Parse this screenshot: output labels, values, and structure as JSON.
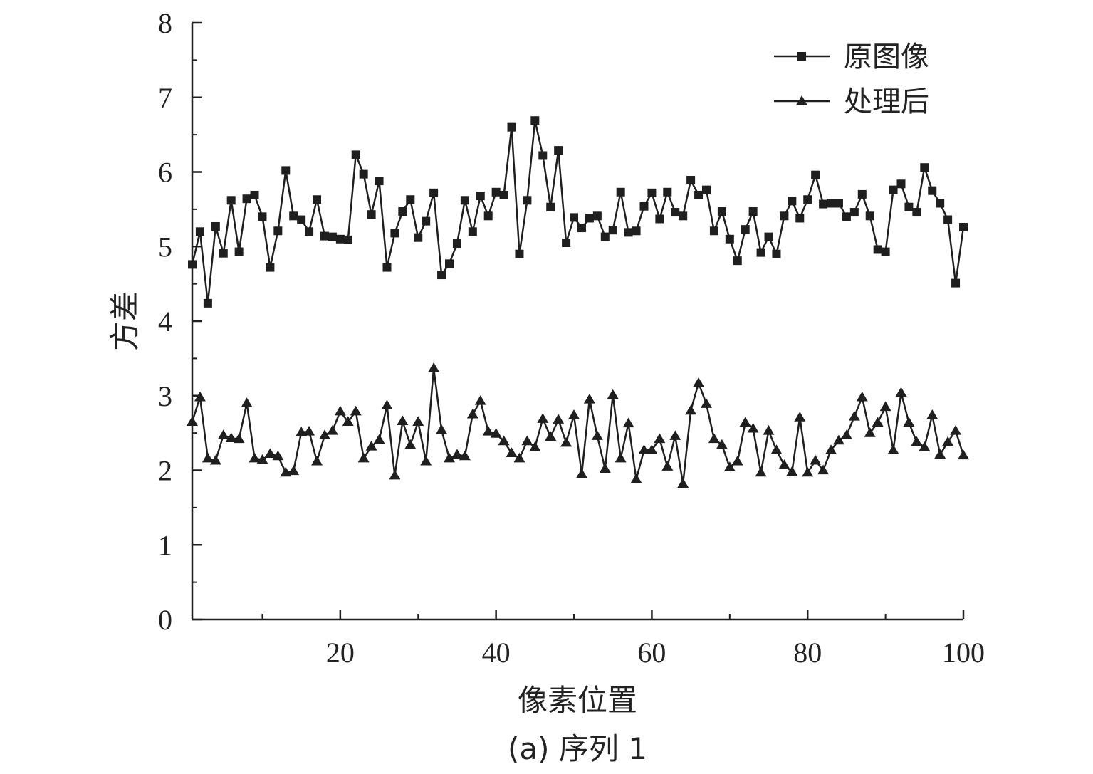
{
  "chart_data": {
    "type": "line",
    "caption": "(a) 序列 1",
    "xlabel": "像素位置",
    "ylabel": "方差",
    "xlim": [
      1,
      100
    ],
    "ylim": [
      0,
      8
    ],
    "x_ticks": [
      20,
      40,
      60,
      80,
      100
    ],
    "x_minor_ticks": [
      10,
      30,
      50,
      70,
      90
    ],
    "y_ticks": [
      0,
      1,
      2,
      3,
      4,
      5,
      6,
      7,
      8
    ],
    "legend_position": "top-right",
    "grid": false,
    "colors": {
      "line": "#1f1f1f"
    },
    "x": [
      1,
      2,
      3,
      4,
      5,
      6,
      7,
      8,
      9,
      10,
      11,
      12,
      13,
      14,
      15,
      16,
      17,
      18,
      19,
      20,
      21,
      22,
      23,
      24,
      25,
      26,
      27,
      28,
      29,
      30,
      31,
      32,
      33,
      34,
      35,
      36,
      37,
      38,
      39,
      40,
      41,
      42,
      43,
      44,
      45,
      46,
      47,
      48,
      49,
      50,
      51,
      52,
      53,
      54,
      55,
      56,
      57,
      58,
      59,
      60,
      61,
      62,
      63,
      64,
      65,
      66,
      67,
      68,
      69,
      70,
      71,
      72,
      73,
      74,
      75,
      76,
      77,
      78,
      79,
      80,
      81,
      82,
      83,
      84,
      85,
      86,
      87,
      88,
      89,
      90,
      91,
      92,
      93,
      94,
      95,
      96,
      97,
      98,
      99,
      100
    ],
    "series": [
      {
        "name": "原图像",
        "marker": "square",
        "values": [
          4.76,
          5.2,
          4.24,
          5.27,
          4.91,
          5.62,
          4.93,
          5.64,
          5.69,
          5.4,
          4.72,
          5.21,
          6.02,
          5.41,
          5.36,
          5.2,
          5.63,
          5.14,
          5.13,
          5.1,
          5.09,
          6.23,
          5.97,
          5.43,
          5.88,
          4.72,
          5.18,
          5.47,
          5.63,
          5.12,
          5.34,
          5.72,
          4.62,
          4.77,
          5.04,
          5.62,
          5.2,
          5.68,
          5.41,
          5.73,
          5.69,
          6.6,
          4.9,
          5.62,
          6.69,
          6.22,
          5.53,
          6.29,
          5.05,
          5.39,
          5.25,
          5.38,
          5.41,
          5.13,
          5.22,
          5.73,
          5.19,
          5.21,
          5.54,
          5.72,
          5.37,
          5.73,
          5.46,
          5.41,
          5.89,
          5.69,
          5.76,
          5.21,
          5.47,
          5.1,
          4.81,
          5.23,
          5.47,
          4.92,
          5.13,
          4.9,
          5.41,
          5.61,
          5.38,
          5.63,
          5.96,
          5.57,
          5.58,
          5.58,
          5.4,
          5.46,
          5.7,
          5.41,
          4.96,
          4.93,
          5.76,
          5.84,
          5.53,
          5.46,
          6.06,
          5.75,
          5.58,
          5.36,
          4.51,
          5.26
        ]
      },
      {
        "name": "处理后",
        "marker": "triangle",
        "values": [
          2.65,
          2.98,
          2.16,
          2.13,
          2.47,
          2.43,
          2.42,
          2.9,
          2.16,
          2.14,
          2.22,
          2.19,
          1.97,
          1.99,
          2.51,
          2.52,
          2.12,
          2.47,
          2.53,
          2.79,
          2.65,
          2.79,
          2.16,
          2.32,
          2.41,
          2.87,
          1.93,
          2.66,
          2.34,
          2.65,
          2.12,
          3.37,
          2.54,
          2.16,
          2.21,
          2.19,
          2.75,
          2.93,
          2.52,
          2.49,
          2.39,
          2.23,
          2.16,
          2.39,
          2.31,
          2.69,
          2.45,
          2.68,
          2.37,
          2.74,
          1.95,
          2.95,
          2.46,
          2.02,
          3.01,
          2.16,
          2.63,
          1.88,
          2.27,
          2.27,
          2.42,
          2.05,
          2.46,
          1.82,
          2.8,
          3.17,
          2.89,
          2.42,
          2.34,
          2.04,
          2.12,
          2.64,
          2.56,
          1.97,
          2.53,
          2.27,
          2.07,
          1.98,
          2.71,
          1.97,
          2.13,
          2.0,
          2.27,
          2.4,
          2.47,
          2.72,
          2.98,
          2.5,
          2.64,
          2.85,
          2.27,
          3.04,
          2.64,
          2.38,
          2.31,
          2.74,
          2.21,
          2.38,
          2.53,
          2.2
        ]
      }
    ]
  }
}
